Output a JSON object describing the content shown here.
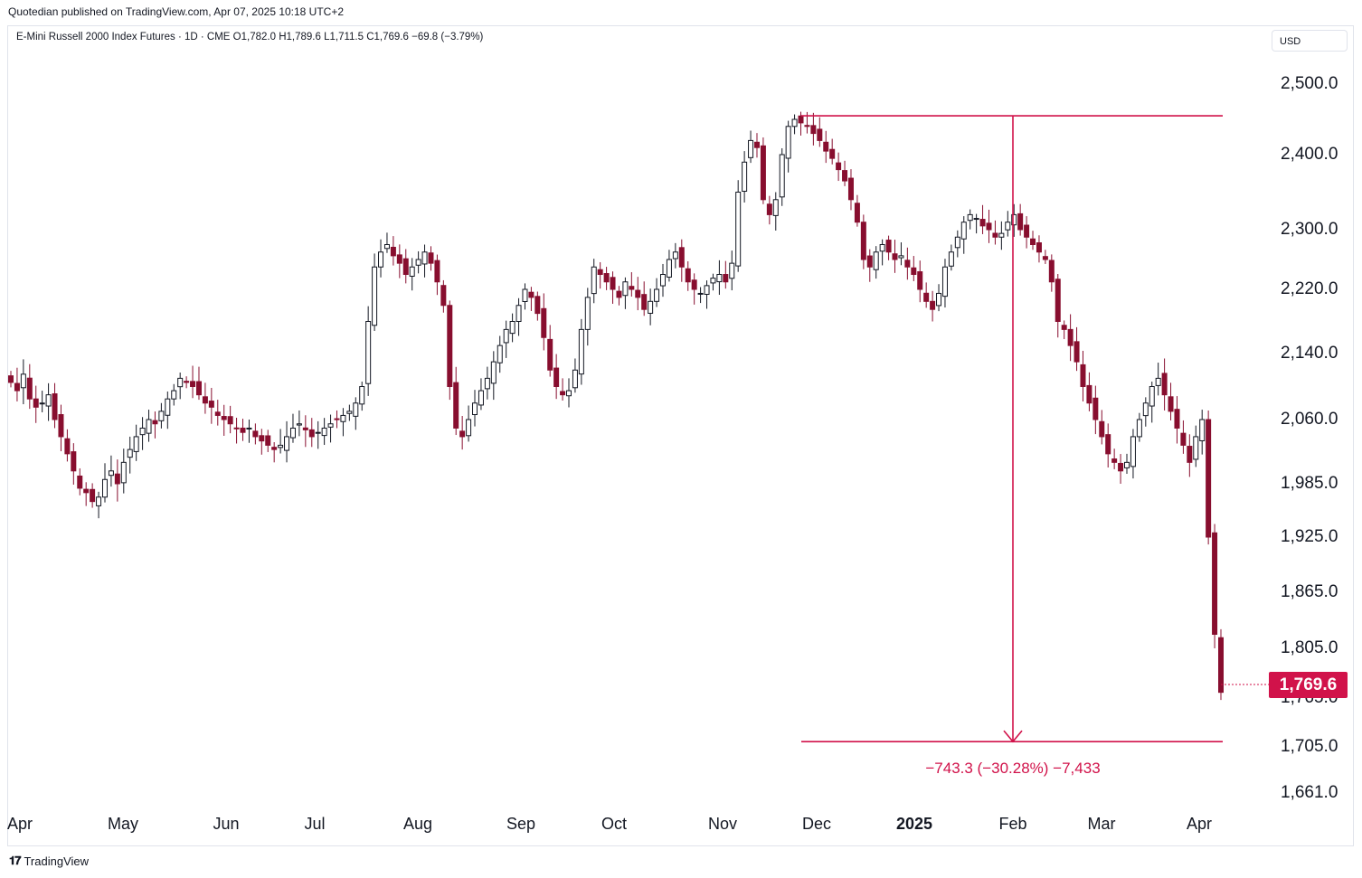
{
  "publisher": "Quotedian published on TradingView.com, Apr 07, 2025 10:18 UTC+2",
  "symbol": {
    "name": "E-Mini Russell 2000 Index Futures · 1D · CME",
    "open": "O1,782.0",
    "high": "H1,789.6",
    "low": "L1,711.5",
    "close": "C1,769.6",
    "change": "−69.8 (−3.79%)"
  },
  "currency": "USD",
  "last_price": "1,769.6",
  "measure_label": "−743.3 (−30.28%) −7,433",
  "footer": {
    "brand": "TradingView",
    "logo_icon": "tradingview-logo-icon"
  },
  "colors": {
    "up": "#131722",
    "down": "#880e2f",
    "accent": "#d1124a"
  },
  "chart_data": {
    "type": "candlestick",
    "y_ticks": [
      "2,500.0",
      "2,400.0",
      "2,300.0",
      "2,220.0",
      "2,140.0",
      "2,060.0",
      "1,985.0",
      "1,925.0",
      "1,865.0",
      "1,805.0",
      "1,765.0",
      "1,705.0",
      "1,661.0"
    ],
    "x_ticks": [
      {
        "label": "Apr",
        "bold": false
      },
      {
        "label": "May",
        "bold": false
      },
      {
        "label": "Jun",
        "bold": false
      },
      {
        "label": "Jul",
        "bold": false
      },
      {
        "label": "Aug",
        "bold": false
      },
      {
        "label": "Sep",
        "bold": false
      },
      {
        "label": "Oct",
        "bold": false
      },
      {
        "label": "Nov",
        "bold": false
      },
      {
        "label": "Dec",
        "bold": false
      },
      {
        "label": "2025",
        "bold": true
      },
      {
        "label": "Feb",
        "bold": false
      },
      {
        "label": "Mar",
        "bold": false
      },
      {
        "label": "Apr",
        "bold": false
      }
    ],
    "close_path": [
      2105,
      2095,
      2115,
      2085,
      2075,
      2080,
      2090,
      2060,
      2040,
      2020,
      2000,
      1980,
      1975,
      1965,
      1970,
      1990,
      2000,
      1985,
      2010,
      2025,
      2040,
      2050,
      2060,
      2055,
      2070,
      2085,
      2095,
      2110,
      2105,
      2100,
      2090,
      2080,
      2075,
      2065,
      2060,
      2055,
      2050,
      2045,
      2050,
      2040,
      2035,
      2030,
      2025,
      2030,
      2040,
      2050,
      2055,
      2048,
      2040,
      2045,
      2050,
      2055,
      2060,
      2065,
      2070,
      2080,
      2100,
      2180,
      2250,
      2270,
      2280,
      2265,
      2255,
      2240,
      2250,
      2260,
      2270,
      2255,
      2230,
      2200,
      2100,
      2050,
      2040,
      2060,
      2080,
      2095,
      2110,
      2130,
      2150,
      2170,
      2180,
      2200,
      2220,
      2210,
      2190,
      2160,
      2120,
      2100,
      2090,
      2095,
      2120,
      2170,
      2210,
      2250,
      2240,
      2230,
      2220,
      2210,
      2230,
      2220,
      2210,
      2195,
      2205,
      2220,
      2240,
      2260,
      2270,
      2250,
      2230,
      2220,
      2215,
      2225,
      2235,
      2240,
      2230,
      2255,
      2350,
      2390,
      2420,
      2410,
      2340,
      2320,
      2340,
      2400,
      2440,
      2450,
      2445,
      2440,
      2430,
      2420,
      2405,
      2395,
      2380,
      2365,
      2340,
      2310,
      2260,
      2250,
      2270,
      2280,
      2270,
      2260,
      2265,
      2250,
      2240,
      2220,
      2205,
      2195,
      2215,
      2250,
      2270,
      2290,
      2310,
      2320,
      2315,
      2305,
      2300,
      2290,
      2295,
      2310,
      2320,
      2300,
      2290,
      2280,
      2270,
      2260,
      2230,
      2180,
      2170,
      2150,
      2130,
      2100,
      2080,
      2060,
      2040,
      2020,
      2010,
      2000,
      2010,
      2040,
      2060,
      2080,
      2100,
      2110,
      2090,
      2070,
      2050,
      2030,
      2010,
      2040,
      2060,
      1925,
      1820,
      1769.6
    ]
  }
}
